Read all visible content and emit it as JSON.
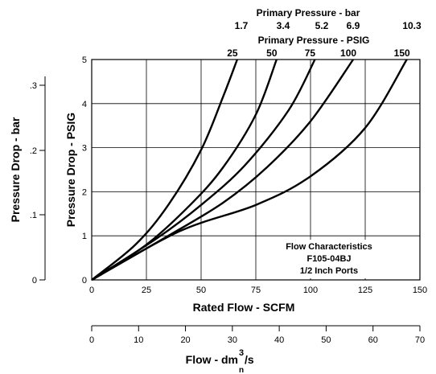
{
  "chart_data": {
    "type": "line",
    "x_axis_label": "Rated Flow - SCFM",
    "x_ticks": [
      "0",
      "25",
      "50",
      "75",
      "100",
      "125",
      "150"
    ],
    "xlim": [
      0,
      150
    ],
    "y_axis_label": "Pressure Drop - PSIG",
    "y_ticks": [
      "0",
      "1",
      "2",
      "3",
      "4",
      "5"
    ],
    "ylim": [
      0,
      5
    ],
    "grid": true,
    "secondary_y_axis": {
      "label": "Pressure Drop - bar",
      "ticks": [
        "0",
        ".1",
        ".2",
        ".3"
      ]
    },
    "secondary_x_axis": {
      "label_main": "Flow - dm",
      "label_sup": "3",
      "label_tail": "/s",
      "label_sub": "n",
      "ticks": [
        "0",
        "10",
        "20",
        "30",
        "40",
        "50",
        "60",
        "70"
      ]
    },
    "top_labels": {
      "bar_title": "Primary Pressure - bar",
      "bar_values": [
        "1.7",
        "3.4",
        "5.2",
        "6.9",
        "10.3"
      ],
      "psig_title": "Primary Pressure - PSIG",
      "psig_values": [
        "25",
        "50",
        "75",
        "100",
        "150"
      ]
    },
    "annotation": [
      "Flow Characteristics",
      "F105-04BJ",
      "1/2 Inch Ports"
    ],
    "series": [
      {
        "name": "25",
        "points": [
          [
            0,
            0
          ],
          [
            20,
            0.8
          ],
          [
            35,
            1.7
          ],
          [
            50,
            2.95
          ],
          [
            60,
            4.15
          ],
          [
            66.5,
            5
          ]
        ]
      },
      {
        "name": "50",
        "points": [
          [
            0,
            0
          ],
          [
            25,
            0.8
          ],
          [
            45,
            1.7
          ],
          [
            60,
            2.55
          ],
          [
            75,
            3.75
          ],
          [
            84.5,
            5
          ]
        ]
      },
      {
        "name": "75",
        "points": [
          [
            0,
            0
          ],
          [
            30,
            0.95
          ],
          [
            50,
            1.7
          ],
          [
            70,
            2.6
          ],
          [
            90,
            3.85
          ],
          [
            102,
            5
          ]
        ]
      },
      {
        "name": "100",
        "points": [
          [
            0,
            0
          ],
          [
            35,
            1.0
          ],
          [
            60,
            1.75
          ],
          [
            80,
            2.55
          ],
          [
            100,
            3.6
          ],
          [
            119.5,
            5
          ]
        ]
      },
      {
        "name": "150",
        "points": [
          [
            0,
            0
          ],
          [
            40,
            1.1
          ],
          [
            75,
            1.7
          ],
          [
            100,
            2.35
          ],
          [
            125,
            3.45
          ],
          [
            144,
            5
          ]
        ]
      }
    ]
  }
}
